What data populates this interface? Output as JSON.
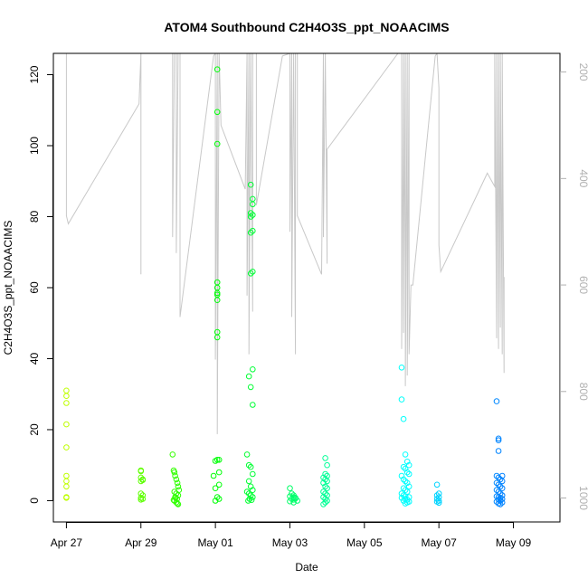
{
  "chart_data": {
    "type": "scatter",
    "title": "ATOM4 Southbound C2H4O3S_ppt_NOAACIMS",
    "xlabel": "Date",
    "ylabel": "C2H4O3S_ppt_NOAACIMS",
    "x_ticks": [
      "Apr 27",
      "Apr 29",
      "May 01",
      "May 03",
      "May 05",
      "May 07",
      "May 09"
    ],
    "y_ticks": [
      0,
      20,
      40,
      60,
      80,
      100,
      120
    ],
    "y2_ticks": [
      200,
      400,
      600,
      800,
      1000
    ],
    "xlim_days": [
      26.65,
      40.25
    ],
    "ylim": [
      -6,
      126
    ],
    "y2lim": [
      1045,
      165
    ],
    "y2_axis": "pressure-like altitude trace (inverted), gray",
    "point_style": "open circles, color varies by time (yellow-green to blue)",
    "colors": {
      "trace": "#c8c8c8",
      "axis": "#000000",
      "y2_tick": "#b0b0b0"
    },
    "series": [
      {
        "x": [
          27.0,
          27.0,
          27.0,
          27.0,
          27.0,
          27.0,
          27.0,
          27.0,
          27.0,
          27.0
        ],
        "y": [
          31,
          29.5,
          27.5,
          21.5,
          15,
          7,
          5.5,
          4,
          1,
          0.8
        ]
      },
      {
        "x": [
          29.0,
          29.0,
          29.0,
          29.05,
          29.0,
          29.05,
          29.0,
          29.05,
          29.0,
          29.05,
          29.0
        ],
        "y": [
          8.5,
          8.3,
          6.5,
          6,
          5.5,
          5.8,
          2,
          1.5,
          0.8,
          0.5,
          0.3
        ]
      },
      {
        "x": [
          29.85,
          29.88,
          29.9,
          29.92,
          29.95,
          29.98,
          30.0,
          30.02,
          29.9,
          29.95,
          30.0,
          29.92,
          29.97,
          29.9,
          29.95,
          30.0,
          29.88,
          29.93,
          29.98
        ],
        "y": [
          13,
          8.5,
          8,
          7,
          6,
          5,
          4,
          3,
          2.5,
          2,
          1.5,
          1,
          0.5,
          0,
          -0.5,
          -1,
          0.2,
          0.8,
          -0.8
        ]
      },
      {
        "x": [
          31.05,
          31.05,
          31.05,
          31.05,
          31.05,
          31.05,
          31.05,
          31.05,
          31.05,
          31.05,
          31.05,
          31.1,
          31.0,
          31.1,
          30.95,
          31.1,
          31.0,
          31.05,
          31.1,
          31.0
        ],
        "y": [
          121.5,
          109.5,
          100.5,
          61.5,
          60,
          58.5,
          58,
          56.5,
          47.5,
          46,
          11.5,
          11.5,
          11.2,
          8,
          7,
          4.5,
          3.5,
          1,
          0.5,
          0
        ]
      },
      {
        "x": [
          31.95,
          32.0,
          32.0,
          31.95,
          32.0,
          31.95,
          32.0,
          31.95,
          32.0,
          31.95,
          32.0,
          31.9,
          31.95,
          32.0,
          31.85,
          31.9,
          31.95,
          32.0,
          31.9,
          31.95,
          32.0,
          31.85,
          31.9,
          31.95,
          32.0,
          31.92,
          31.97,
          31.88
        ],
        "y": [
          89,
          85,
          83.5,
          81,
          80.5,
          80,
          76,
          75.5,
          64.5,
          64,
          37,
          35,
          32,
          27,
          13,
          10,
          9.5,
          7.5,
          5.5,
          4,
          3,
          2.5,
          2,
          1.5,
          1,
          0.5,
          0.2,
          0
        ]
      },
      {
        "x": [
          33.0,
          33.05,
          33.1,
          33.0,
          33.1,
          33.15,
          33.05,
          33.1,
          33.2,
          33.0,
          33.15,
          33.1
        ],
        "y": [
          3.5,
          2,
          1.5,
          1.2,
          1,
          0.8,
          0.5,
          0.3,
          0,
          -0.2,
          0.6,
          -0.5
        ]
      },
      {
        "x": [
          33.95,
          34.0,
          33.95,
          34.0,
          33.9,
          33.95,
          34.0,
          33.9,
          33.95,
          34.0,
          33.9,
          33.95,
          34.0,
          33.9,
          33.95,
          34.0,
          33.95,
          33.9
        ],
        "y": [
          12,
          10,
          7.5,
          7,
          6.5,
          6,
          5.5,
          5,
          4,
          3.5,
          2.5,
          2,
          1.5,
          1,
          0.5,
          0,
          -0.5,
          -1
        ]
      },
      {
        "x": [
          36.0,
          36.0,
          36.05,
          36.1,
          36.15,
          36.2,
          36.05,
          36.1,
          36.15,
          36.2,
          36.0,
          36.05,
          36.1,
          36.15,
          36.2,
          36.05,
          36.1,
          36.15,
          36.0,
          36.05,
          36.1,
          36.2,
          36.0,
          36.1,
          36.15,
          36.05,
          36.2,
          36.15,
          36.1
        ],
        "y": [
          37.5,
          28.5,
          23,
          13,
          11,
          10,
          9.5,
          9,
          8,
          7.5,
          7,
          6,
          5.5,
          5,
          4,
          3.5,
          3,
          2.5,
          2,
          1.5,
          1.2,
          1,
          0.8,
          0.5,
          0.3,
          0,
          -0.3,
          -0.5,
          -0.8
        ]
      },
      {
        "x": [
          36.95,
          37.0,
          36.95,
          37.0,
          36.95,
          37.0,
          36.95,
          37.0
        ],
        "y": [
          4.5,
          2,
          1.5,
          1,
          0.5,
          0,
          -0.3,
          -0.6
        ]
      },
      {
        "x": [
          38.55,
          38.6,
          38.6,
          38.6,
          38.55,
          38.6,
          38.65,
          38.7,
          38.55,
          38.6,
          38.65,
          38.7,
          38.55,
          38.6,
          38.65,
          38.7,
          38.55,
          38.6,
          38.65,
          38.7,
          38.6,
          38.65,
          38.55,
          38.7,
          38.6,
          38.65,
          38.7
        ],
        "y": [
          28,
          17.5,
          17,
          14,
          7,
          6.5,
          6,
          5.5,
          5,
          4.5,
          4,
          3.5,
          3,
          2.5,
          2,
          1.5,
          1.2,
          1,
          0.8,
          0.5,
          0.3,
          0,
          -0.3,
          -0.5,
          -0.8,
          -1,
          7
        ]
      }
    ],
    "trace": {
      "x": [
        27.0,
        27.0,
        27.0,
        27.05,
        28.95,
        29.0,
        29.0,
        29.0,
        29.05,
        29.85,
        29.85,
        29.9,
        29.9,
        29.95,
        29.95,
        30.0,
        30.0,
        30.05,
        30.05,
        30.95,
        31.0,
        31.0,
        31.05,
        31.05,
        31.1,
        31.1,
        31.15,
        31.8,
        31.85,
        31.85,
        31.9,
        31.9,
        31.95,
        31.95,
        32.0,
        32.0,
        32.05,
        32.05,
        32.1,
        32.1,
        32.8,
        33.0,
        33.0,
        33.05,
        33.05,
        33.1,
        33.1,
        33.15,
        33.15,
        33.2,
        33.2,
        33.85,
        33.9,
        33.9,
        33.95,
        33.95,
        34.0,
        34.0,
        35.9,
        36.0,
        36.0,
        36.05,
        36.05,
        36.1,
        36.1,
        36.15,
        36.15,
        36.2,
        36.2,
        36.25,
        36.3,
        36.9,
        36.95,
        37.0,
        37.0,
        37.05,
        38.3,
        38.5,
        38.5,
        38.55,
        38.55,
        38.6,
        38.6,
        38.65,
        38.65,
        38.7,
        38.7,
        38.75,
        38.75
      ],
      "y": [
        165,
        330,
        470,
        485,
        260,
        165,
        580,
        165,
        165,
        165,
        510,
        165,
        165,
        165,
        540,
        165,
        165,
        165,
        660,
        170,
        165,
        740,
        165,
        880,
        165,
        165,
        300,
        420,
        165,
        620,
        165,
        730,
        165,
        165,
        650,
        165,
        165,
        165,
        165,
        450,
        170,
        165,
        500,
        165,
        660,
        165,
        165,
        730,
        165,
        165,
        470,
        580,
        165,
        510,
        165,
        165,
        560,
        345,
        165,
        165,
        720,
        165,
        690,
        165,
        790,
        165,
        770,
        165,
        730,
        600,
        600,
        170,
        165,
        230,
        525,
        575,
        390,
        415,
        165,
        700,
        165,
        720,
        165,
        680,
        165,
        730,
        165,
        765,
        585
      ]
    }
  }
}
